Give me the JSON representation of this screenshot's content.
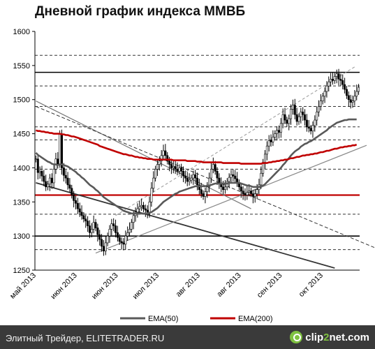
{
  "chart_data": {
    "type": "candlestick",
    "title": "Дневной график индекса ММВБ",
    "ylim": [
      1250,
      1600
    ],
    "y_ticks": [
      "1250",
      "1300",
      "1350",
      "1400",
      "1450",
      "1500",
      "1550",
      "1600"
    ],
    "x_ticks": [
      "май 2013",
      "июн 2013",
      "июн 2013",
      "июл 2013",
      "авг 2013",
      "авг 2013",
      "сен 2013",
      "окт 2013"
    ],
    "close": [
      1413,
      1393,
      1395,
      1388,
      1380,
      1372,
      1376,
      1385,
      1378,
      1398,
      1413,
      1405,
      1450,
      1400,
      1389,
      1385,
      1375,
      1370,
      1360,
      1352,
      1348,
      1340,
      1335,
      1330,
      1325,
      1322,
      1315,
      1305,
      1310,
      1320,
      1312,
      1302,
      1295,
      1285,
      1278,
      1290,
      1300,
      1310,
      1318,
      1315,
      1305,
      1298,
      1292,
      1290,
      1288,
      1300,
      1305,
      1310,
      1320,
      1330,
      1335,
      1340,
      1343,
      1345,
      1340,
      1338,
      1335,
      1350,
      1370,
      1385,
      1398,
      1405,
      1410,
      1418,
      1425,
      1418,
      1410,
      1405,
      1400,
      1402,
      1398,
      1395,
      1400,
      1395,
      1388,
      1385,
      1380,
      1382,
      1385,
      1390,
      1385,
      1375,
      1368,
      1362,
      1358,
      1365,
      1372,
      1385,
      1398,
      1405,
      1395,
      1385,
      1378,
      1372,
      1368,
      1372,
      1380,
      1386,
      1390,
      1388,
      1384,
      1378,
      1372,
      1366,
      1362,
      1360,
      1364,
      1366,
      1362,
      1358,
      1362,
      1368,
      1375,
      1392,
      1408,
      1420,
      1432,
      1440,
      1438,
      1445,
      1450,
      1455,
      1452,
      1465,
      1478,
      1470,
      1465,
      1472,
      1486,
      1492,
      1478,
      1468,
      1475,
      1482,
      1478,
      1470,
      1460,
      1458,
      1454,
      1462,
      1470,
      1482,
      1490,
      1498,
      1505,
      1512,
      1520,
      1526,
      1530,
      1528,
      1534,
      1538,
      1530,
      1528,
      1522,
      1515,
      1506,
      1500,
      1496,
      1498,
      1505,
      1512,
      1518
    ],
    "ema50": [
      1422,
      1419,
      1417,
      1415,
      1413,
      1411,
      1409,
      1408,
      1406,
      1405,
      1405,
      1404,
      1405,
      1405,
      1404,
      1403,
      1402,
      1400,
      1398,
      1396,
      1394,
      1391,
      1389,
      1386,
      1384,
      1381,
      1378,
      1375,
      1373,
      1371,
      1368,
      1366,
      1363,
      1360,
      1357,
      1355,
      1353,
      1351,
      1349,
      1347,
      1345,
      1343,
      1341,
      1339,
      1337,
      1336,
      1335,
      1334,
      1333,
      1333,
      1333,
      1333,
      1333,
      1333,
      1333,
      1333,
      1333,
      1334,
      1335,
      1337,
      1339,
      1341,
      1344,
      1347,
      1350,
      1352,
      1354,
      1356,
      1358,
      1360,
      1362,
      1363,
      1365,
      1366,
      1367,
      1368,
      1369,
      1370,
      1371,
      1372,
      1373,
      1373,
      1373,
      1373,
      1373,
      1373,
      1374,
      1374,
      1375,
      1376,
      1377,
      1377,
      1377,
      1377,
      1377,
      1377,
      1377,
      1378,
      1378,
      1378,
      1378,
      1378,
      1378,
      1377,
      1376,
      1375,
      1374,
      1374,
      1373,
      1372,
      1372,
      1372,
      1372,
      1373,
      1374,
      1376,
      1379,
      1382,
      1385,
      1388,
      1391,
      1394,
      1397,
      1400,
      1404,
      1407,
      1411,
      1414,
      1418,
      1421,
      1424,
      1426,
      1428,
      1431,
      1433,
      1435,
      1436,
      1438,
      1439,
      1441,
      1443,
      1445,
      1447,
      1449,
      1451,
      1453,
      1455,
      1458,
      1460,
      1462,
      1464,
      1466,
      1467,
      1468,
      1469,
      1470,
      1470,
      1471,
      1471,
      1471,
      1471,
      1471
    ],
    "ema200": [
      1455,
      1454,
      1454,
      1453,
      1453,
      1452,
      1452,
      1451,
      1451,
      1450,
      1450,
      1450,
      1450,
      1449,
      1449,
      1448,
      1448,
      1447,
      1446,
      1446,
      1445,
      1444,
      1443,
      1442,
      1441,
      1440,
      1439,
      1438,
      1437,
      1436,
      1435,
      1434,
      1432,
      1431,
      1430,
      1429,
      1428,
      1427,
      1426,
      1425,
      1424,
      1423,
      1422,
      1421,
      1420,
      1420,
      1419,
      1418,
      1418,
      1417,
      1416,
      1416,
      1415,
      1415,
      1414,
      1414,
      1413,
      1413,
      1413,
      1412,
      1412,
      1412,
      1412,
      1412,
      1412,
      1412,
      1412,
      1412,
      1412,
      1411,
      1411,
      1411,
      1411,
      1411,
      1411,
      1411,
      1410,
      1410,
      1410,
      1410,
      1410,
      1409,
      1409,
      1409,
      1408,
      1408,
      1408,
      1408,
      1408,
      1408,
      1408,
      1408,
      1408,
      1408,
      1407,
      1407,
      1407,
      1407,
      1407,
      1407,
      1407,
      1407,
      1407,
      1406,
      1406,
      1406,
      1406,
      1406,
      1406,
      1406,
      1406,
      1406,
      1406,
      1406,
      1407,
      1407,
      1407,
      1408,
      1408,
      1409,
      1409,
      1410,
      1410,
      1411,
      1411,
      1412,
      1412,
      1413,
      1414,
      1414,
      1415,
      1416,
      1416,
      1417,
      1418,
      1418,
      1419,
      1419,
      1420,
      1420,
      1421,
      1421,
      1422,
      1423,
      1423,
      1424,
      1425,
      1425,
      1426,
      1427,
      1428,
      1428,
      1429,
      1430,
      1430,
      1431,
      1431,
      1432,
      1432,
      1433,
      1433,
      1434
    ],
    "horizontal_levels": [
      {
        "value": 1565,
        "style": "dashed"
      },
      {
        "value": 1540,
        "style": "solid"
      },
      {
        "value": 1520,
        "style": "dashed"
      },
      {
        "value": 1490,
        "style": "dashed"
      },
      {
        "value": 1460,
        "style": "dashed"
      },
      {
        "value": 1441,
        "style": "dashed"
      },
      {
        "value": 1398,
        "style": "dashed"
      },
      {
        "value": 1360,
        "style": "solid-red"
      },
      {
        "value": 1332,
        "style": "dashed"
      },
      {
        "value": 1300,
        "style": "solid"
      },
      {
        "value": 1280,
        "style": "dashed"
      }
    ],
    "legend": [
      {
        "name": "EMA(50)",
        "color": "#595959"
      },
      {
        "name": "EMA(200)",
        "color": "#c00000"
      }
    ]
  },
  "footer": {
    "text": "Элитный Трейдер, ELITETRADER.RU",
    "logo_prefix": "clip",
    "logo_two": "2",
    "logo_suffix": "net.com"
  },
  "colors": {
    "ema50": "#595959",
    "ema200": "#c00000",
    "candles": "#000000",
    "footer_bg": "#3a3a3a",
    "logo_green": "#7fc241"
  }
}
